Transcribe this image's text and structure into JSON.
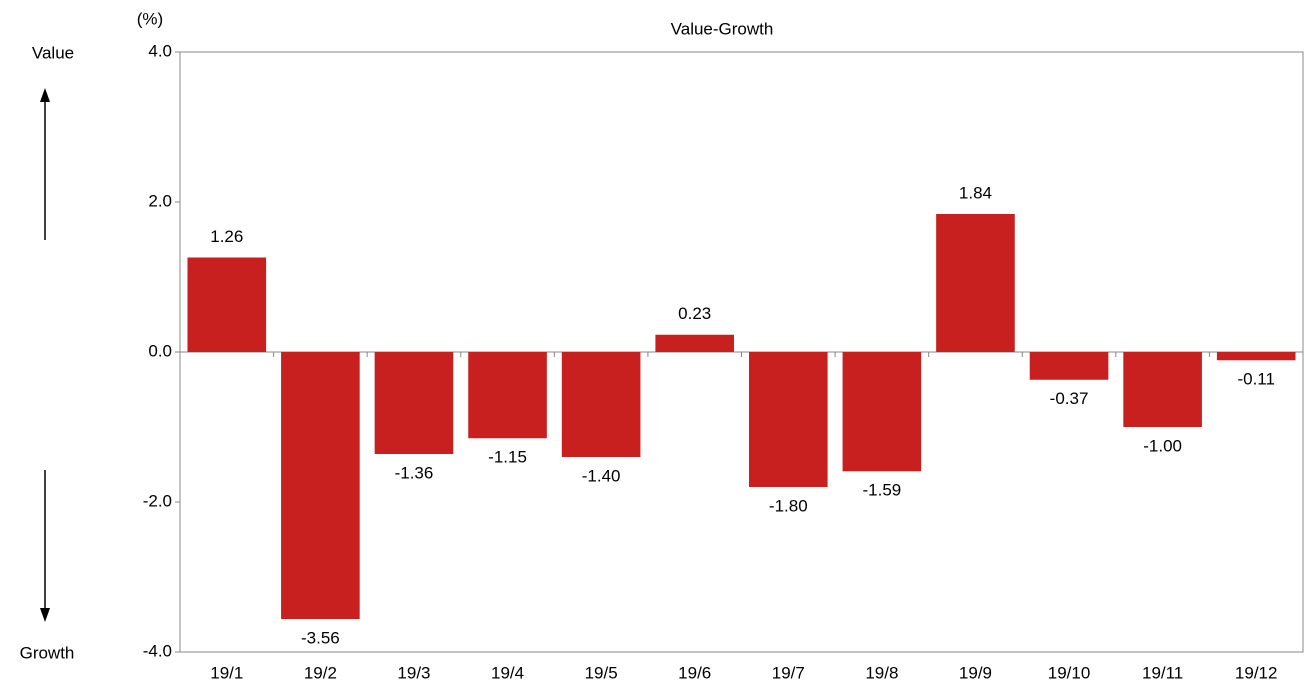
{
  "chart_data": {
    "type": "bar",
    "title": "Value-Growth",
    "y_unit": "(%)",
    "annotations": [
      "Value",
      "Growth"
    ],
    "categories": [
      "19/1",
      "19/2",
      "19/3",
      "19/4",
      "19/5",
      "19/6",
      "19/7",
      "19/8",
      "19/9",
      "19/10",
      "19/11",
      "19/12"
    ],
    "values": [
      1.26,
      -3.56,
      -1.36,
      -1.15,
      -1.4,
      0.23,
      -1.8,
      -1.59,
      1.84,
      -0.37,
      -1.0,
      -0.11
    ],
    "value_labels": [
      "1.26",
      "-3.56",
      "-1.36",
      "-1.15",
      "-1.40",
      "0.23",
      "-1.80",
      "-1.59",
      "1.84",
      "-0.37",
      "-1.00",
      "-0.11"
    ],
    "color": "#c8201f",
    "ylim": [
      -4,
      4
    ],
    "yticks": [
      {
        "value": -4,
        "label": "-4.0"
      },
      {
        "value": -2,
        "label": "-2.0"
      },
      {
        "value": 0,
        "label": "0.0"
      },
      {
        "value": 2,
        "label": "2.0"
      },
      {
        "value": 4,
        "label": "4.0"
      }
    ],
    "grid": false
  }
}
